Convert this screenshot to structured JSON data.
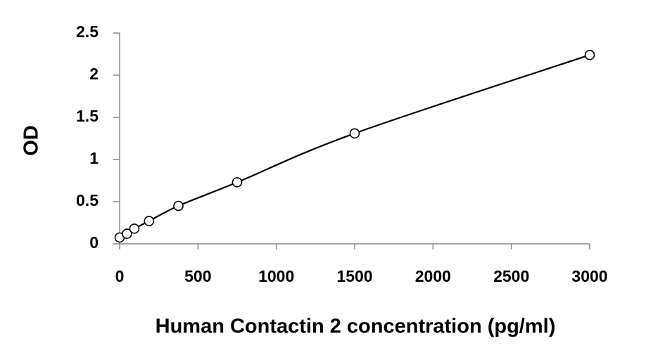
{
  "chart_data": {
    "type": "scatter",
    "x_label": "Human Contactin 2 concentration (pg/ml)",
    "y_label": "OD",
    "x": [
      0,
      46.875,
      93.75,
      187.5,
      375,
      750,
      1500,
      3000
    ],
    "values": [
      0.075,
      0.12,
      0.18,
      0.27,
      0.45,
      0.73,
      1.31,
      2.24
    ],
    "color": "#000000",
    "fit_line": true,
    "xlim": [
      0,
      3000
    ],
    "xticks": [
      0,
      500,
      1000,
      1500,
      2000,
      2500,
      3000
    ],
    "ylim": [
      0,
      2.5
    ],
    "yticks": [
      0,
      0.5,
      1,
      1.5,
      2,
      2.5
    ]
  }
}
